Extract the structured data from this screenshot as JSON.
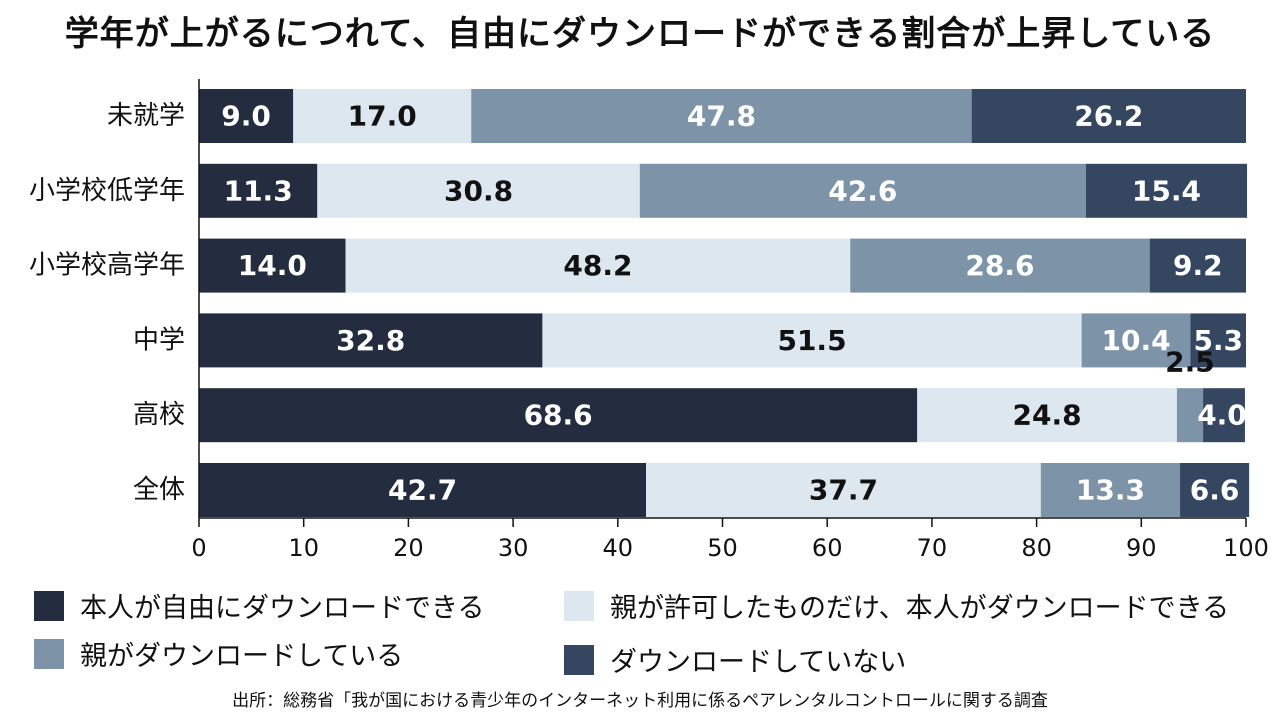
{
  "chart_data": {
    "type": "bar",
    "orientation": "horizontal",
    "stacked": true,
    "title": "学年が上がるにつれて、自由にダウンロードができる割合が上昇している",
    "categories": [
      "未就学",
      "小学校低学年",
      "小学校高学年",
      "中学",
      "高校",
      "全体"
    ],
    "series": [
      {
        "name": "本人が自由にダウンロードできる",
        "color": "#232d3f",
        "label_color": "#ffffff",
        "values": [
          9.0,
          11.3,
          14.0,
          32.8,
          68.6,
          42.7
        ],
        "labels": [
          "9.0",
          "11.3",
          "14.0",
          "32.8",
          "68.6",
          "42.7"
        ]
      },
      {
        "name": "親が許可したものだけ、本人がダウンロードできる",
        "color": "#dde7f0",
        "label_color": "#111111",
        "values": [
          17.0,
          30.8,
          48.2,
          51.5,
          24.8,
          37.7
        ],
        "labels": [
          "17.0",
          "30.8",
          "48.2",
          "51.5",
          "24.8",
          "37.7"
        ]
      },
      {
        "name": "親がダウンロードしている",
        "color": "#7d93a8",
        "label_color": "#ffffff",
        "values": [
          47.8,
          42.6,
          28.6,
          10.4,
          2.5,
          13.3
        ],
        "labels": [
          "47.8",
          "42.6",
          "28.6",
          "10.4",
          "2.5",
          "13.3"
        ]
      },
      {
        "name": "ダウンロードしていない",
        "color": "#344660",
        "label_color": "#ffffff",
        "values": [
          26.2,
          15.4,
          9.2,
          5.3,
          4.0,
          6.6
        ],
        "labels": [
          "26.2",
          "15.4",
          "9.2",
          "5.3",
          "4.0",
          "6.6"
        ]
      }
    ],
    "xlim": [
      0,
      100
    ],
    "xticks": [
      "0",
      "10",
      "20",
      "30",
      "40",
      "50",
      "60",
      "70",
      "80",
      "90",
      "100"
    ],
    "grid": false,
    "legend_position": "bottom"
  },
  "legend": [
    {
      "label": "本人が自由にダウンロードできる",
      "color": "#232d3f"
    },
    {
      "label": "親が許可したものだけ、本人がダウンロードできる",
      "color": "#dde7f0"
    },
    {
      "label": "親がダウンロードしている",
      "color": "#7d93a8"
    },
    {
      "label": "ダウンロードしていない",
      "color": "#344660"
    }
  ],
  "source": "出所：総務省「我が国における青少年のインターネット利用に係るペアレンタルコントロールに関する調査"
}
